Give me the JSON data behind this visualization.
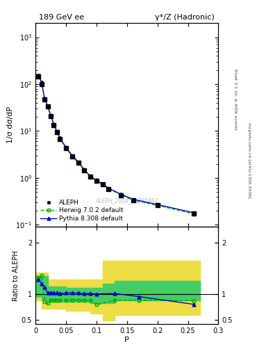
{
  "title_left": "189 GeV ee",
  "title_right": "γ*/Z (Hadronic)",
  "ylabel_main": "1/σ dσ/dP",
  "ylabel_ratio": "Ratio to ALEPH",
  "xlabel": "P",
  "right_label_top": "Rivet 3.1.10, ≥ 400k events",
  "right_label_bot": "mcplots.cern.ch [arXiv:1306.3436]",
  "watermark": "ALEPH_2004_S5765862",
  "aleph_x": [
    0.005,
    0.01,
    0.015,
    0.02,
    0.025,
    0.03,
    0.035,
    0.04,
    0.05,
    0.06,
    0.07,
    0.08,
    0.09,
    0.1,
    0.11,
    0.12,
    0.14,
    0.16,
    0.2,
    0.26
  ],
  "aleph_y": [
    145,
    100,
    47,
    33,
    21,
    13.5,
    9.5,
    6.8,
    4.3,
    2.9,
    2.1,
    1.45,
    1.05,
    0.87,
    0.72,
    0.58,
    0.43,
    0.33,
    0.26,
    0.175
  ],
  "herwig_x": [
    0.005,
    0.01,
    0.015,
    0.02,
    0.025,
    0.03,
    0.035,
    0.04,
    0.05,
    0.06,
    0.07,
    0.08,
    0.09,
    0.1,
    0.11,
    0.12,
    0.14,
    0.16,
    0.2,
    0.26
  ],
  "herwig_y": [
    155,
    108,
    48,
    34,
    21,
    13.8,
    9.7,
    7.0,
    4.4,
    2.9,
    2.1,
    1.46,
    1.06,
    0.87,
    0.72,
    0.58,
    0.44,
    0.33,
    0.26,
    0.17
  ],
  "pythia_x": [
    0.005,
    0.01,
    0.015,
    0.02,
    0.025,
    0.03,
    0.035,
    0.04,
    0.05,
    0.06,
    0.07,
    0.08,
    0.09,
    0.1,
    0.11,
    0.12,
    0.14,
    0.16,
    0.2,
    0.26
  ],
  "pythia_y": [
    150,
    110,
    49,
    34,
    21.5,
    14.0,
    9.9,
    7.1,
    4.5,
    3.0,
    2.2,
    1.5,
    1.08,
    0.89,
    0.74,
    0.6,
    0.45,
    0.35,
    0.27,
    0.18
  ],
  "herwig_ratio_x": [
    0.005,
    0.01,
    0.015,
    0.02,
    0.025,
    0.03,
    0.035,
    0.04,
    0.05,
    0.06,
    0.07,
    0.08,
    0.09,
    0.1,
    0.13,
    0.17,
    0.26
  ],
  "herwig_ratio_y": [
    1.32,
    1.36,
    0.85,
    0.82,
    0.88,
    0.88,
    0.88,
    0.88,
    0.88,
    0.88,
    0.88,
    0.88,
    0.88,
    0.79,
    0.88,
    0.88,
    0.87
  ],
  "pythia_ratio_x": [
    0.005,
    0.01,
    0.015,
    0.02,
    0.025,
    0.03,
    0.035,
    0.04,
    0.05,
    0.06,
    0.07,
    0.08,
    0.09,
    0.1,
    0.13,
    0.17,
    0.26
  ],
  "pythia_ratio_y": [
    1.28,
    1.2,
    1.13,
    1.02,
    1.03,
    1.02,
    1.02,
    1.01,
    1.02,
    1.02,
    1.02,
    1.01,
    1.01,
    1.0,
    1.01,
    0.95,
    0.8
  ],
  "yellow_band_edges": [
    0.0,
    0.01,
    0.02,
    0.05,
    0.09,
    0.11,
    0.13,
    0.27
  ],
  "yellow_band_lo": [
    0.88,
    0.72,
    0.72,
    0.68,
    0.62,
    0.48,
    0.6,
    0.6
  ],
  "yellow_band_hi": [
    1.42,
    1.42,
    1.28,
    1.28,
    1.28,
    1.65,
    1.65,
    1.65
  ],
  "green_band_edges": [
    0.0,
    0.01,
    0.02,
    0.05,
    0.09,
    0.11,
    0.13,
    0.27
  ],
  "green_band_lo": [
    0.95,
    0.88,
    0.85,
    0.85,
    0.82,
    0.82,
    0.88,
    0.88
  ],
  "green_band_hi": [
    1.35,
    1.35,
    1.15,
    1.12,
    1.12,
    1.2,
    1.25,
    1.25
  ],
  "ylim_main": [
    0.09,
    2000
  ],
  "ylim_ratio": [
    0.42,
    2.3
  ],
  "xlim": [
    0.0,
    0.3
  ],
  "color_aleph": "#000000",
  "color_herwig": "#00aa00",
  "color_pythia": "#0000cc",
  "color_green_band": "#44cc66",
  "color_yellow_band": "#eedd44",
  "bg_color": "#ffffff"
}
